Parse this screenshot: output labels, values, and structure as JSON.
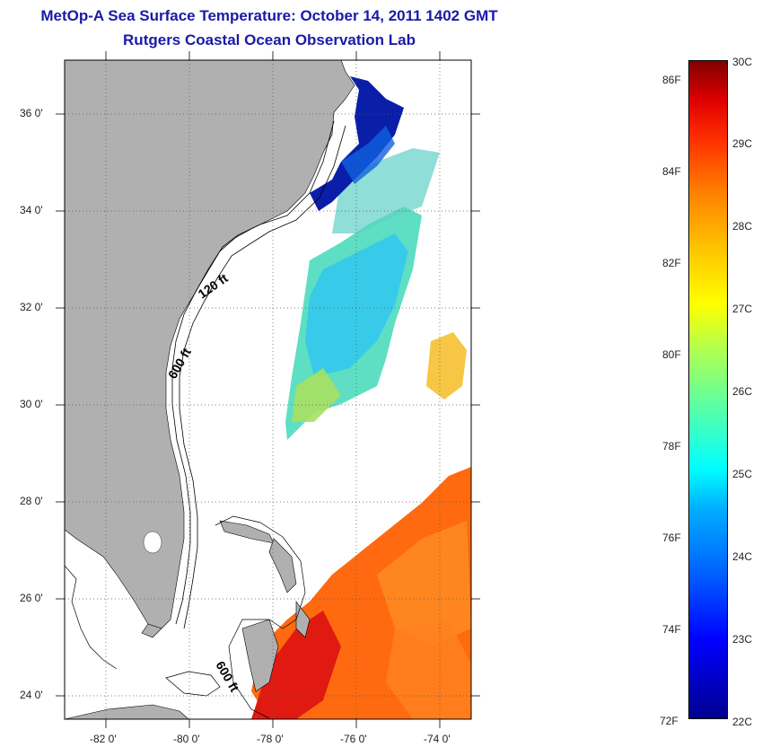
{
  "title": {
    "line1": "MetOp-A Sea Surface Temperature:  October 14, 2011 1402 GMT",
    "line2": "Rutgers Coastal Ocean Observation Lab"
  },
  "map": {
    "lat_ticks": [
      "36 0'",
      "34 0'",
      "32 0'",
      "30 0'",
      "28 0'",
      "26 0'",
      "24 0'"
    ],
    "lon_ticks": [
      "-82 0'",
      "-80 0'",
      "-78 0'",
      "-76 0'",
      "-74 0'"
    ],
    "contour_labels": {
      "c120": "120 ft",
      "c600_north": "600 ft",
      "c600_south": "600 ft"
    },
    "colors": {
      "land": "#b0b0b0",
      "ocean": "#ffffff",
      "grid": "#555555"
    }
  },
  "colorbar": {
    "fahrenheit": [
      "86F",
      "84F",
      "82F",
      "80F",
      "78F",
      "76F",
      "74F",
      "72F"
    ],
    "celsius": [
      "30C",
      "29C",
      "28C",
      "27C",
      "26C",
      "25C",
      "24C",
      "23C",
      "22C"
    ],
    "range_c": [
      22,
      30
    ]
  }
}
